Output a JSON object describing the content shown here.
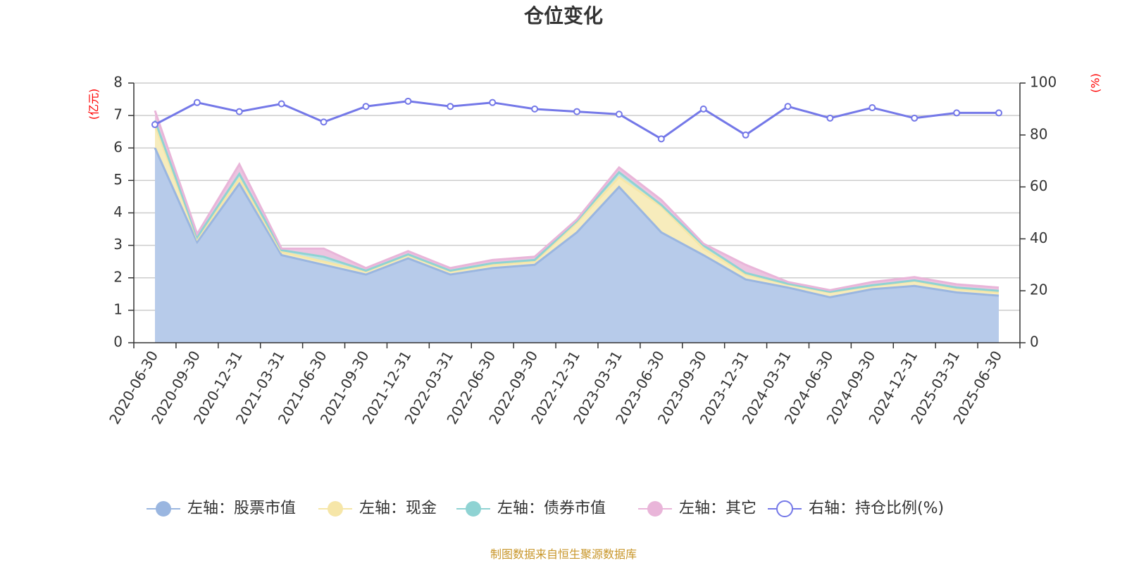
{
  "chart_data": {
    "type": "area",
    "title": "仓位变化",
    "left_unit": "(亿元)",
    "right_unit": "(%)",
    "source": "制图数据来自恒生聚源数据库",
    "categories": [
      "2020-06-30",
      "2020-09-30",
      "2020-12-31",
      "2021-03-31",
      "2021-06-30",
      "2021-09-30",
      "2021-12-31",
      "2022-03-31",
      "2022-06-30",
      "2022-09-30",
      "2022-12-31",
      "2023-03-31",
      "2023-06-30",
      "2023-09-30",
      "2023-12-31",
      "2024-03-31",
      "2024-06-30",
      "2024-09-30",
      "2024-12-31",
      "2025-03-31",
      "2025-06-30"
    ],
    "left_axis": {
      "min": 0,
      "max": 8,
      "ticks": [
        "0",
        "1",
        "2",
        "3",
        "4",
        "5",
        "6",
        "7",
        "8"
      ]
    },
    "right_axis": {
      "min": 0,
      "max": 100,
      "ticks": [
        "0",
        "20",
        "40",
        "60",
        "80",
        "100"
      ]
    },
    "series": [
      {
        "name": "左轴：股票市值",
        "axis": "left",
        "stacked": true,
        "color": "#9ab6e0",
        "fill": "#b7cbea",
        "values": [
          6.0,
          3.1,
          4.9,
          2.7,
          2.4,
          2.1,
          2.6,
          2.1,
          2.3,
          2.4,
          3.4,
          4.8,
          3.4,
          2.7,
          1.95,
          1.7,
          1.4,
          1.65,
          1.75,
          1.55,
          1.45
        ]
      },
      {
        "name": "左轴：现金",
        "axis": "left",
        "stacked": true,
        "color": "#f6e6a8",
        "fill": "#f7ecbc",
        "values": [
          0.7,
          0.1,
          0.15,
          0.1,
          0.1,
          0.1,
          0.1,
          0.1,
          0.1,
          0.1,
          0.3,
          0.3,
          0.8,
          0.2,
          0.15,
          0.1,
          0.15,
          0.1,
          0.15,
          0.1,
          0.1
        ]
      },
      {
        "name": "左轴：债券市值",
        "axis": "left",
        "stacked": true,
        "color": "#8fd3d3",
        "fill": "#bfe4e4",
        "values": [
          0.15,
          0.05,
          0.15,
          0.05,
          0.15,
          0.02,
          0.02,
          0.02,
          0.05,
          0.05,
          0.05,
          0.15,
          0.05,
          0.1,
          0.05,
          0.02,
          0.02,
          0.02,
          0.02,
          0.05,
          0.05
        ]
      },
      {
        "name": "左轴：其它",
        "axis": "left",
        "stacked": true,
        "color": "#e9b5d9",
        "fill": "#ecc4e0",
        "values": [
          0.3,
          0.1,
          0.3,
          0.05,
          0.25,
          0.08,
          0.1,
          0.08,
          0.1,
          0.1,
          0.05,
          0.15,
          0.15,
          0.05,
          0.25,
          0.05,
          0.05,
          0.1,
          0.1,
          0.1,
          0.1
        ]
      },
      {
        "name": "右轴：持仓比例(%)",
        "axis": "right",
        "stacked": false,
        "color": "#7478e8",
        "values": [
          84,
          92.5,
          89,
          92,
          85,
          91,
          93,
          91,
          92.5,
          90,
          89,
          88,
          78.5,
          90,
          80,
          91,
          86.5,
          90.5,
          86.5,
          88.5,
          88.5
        ]
      }
    ],
    "grid": true,
    "legend_position": "bottom-center"
  }
}
